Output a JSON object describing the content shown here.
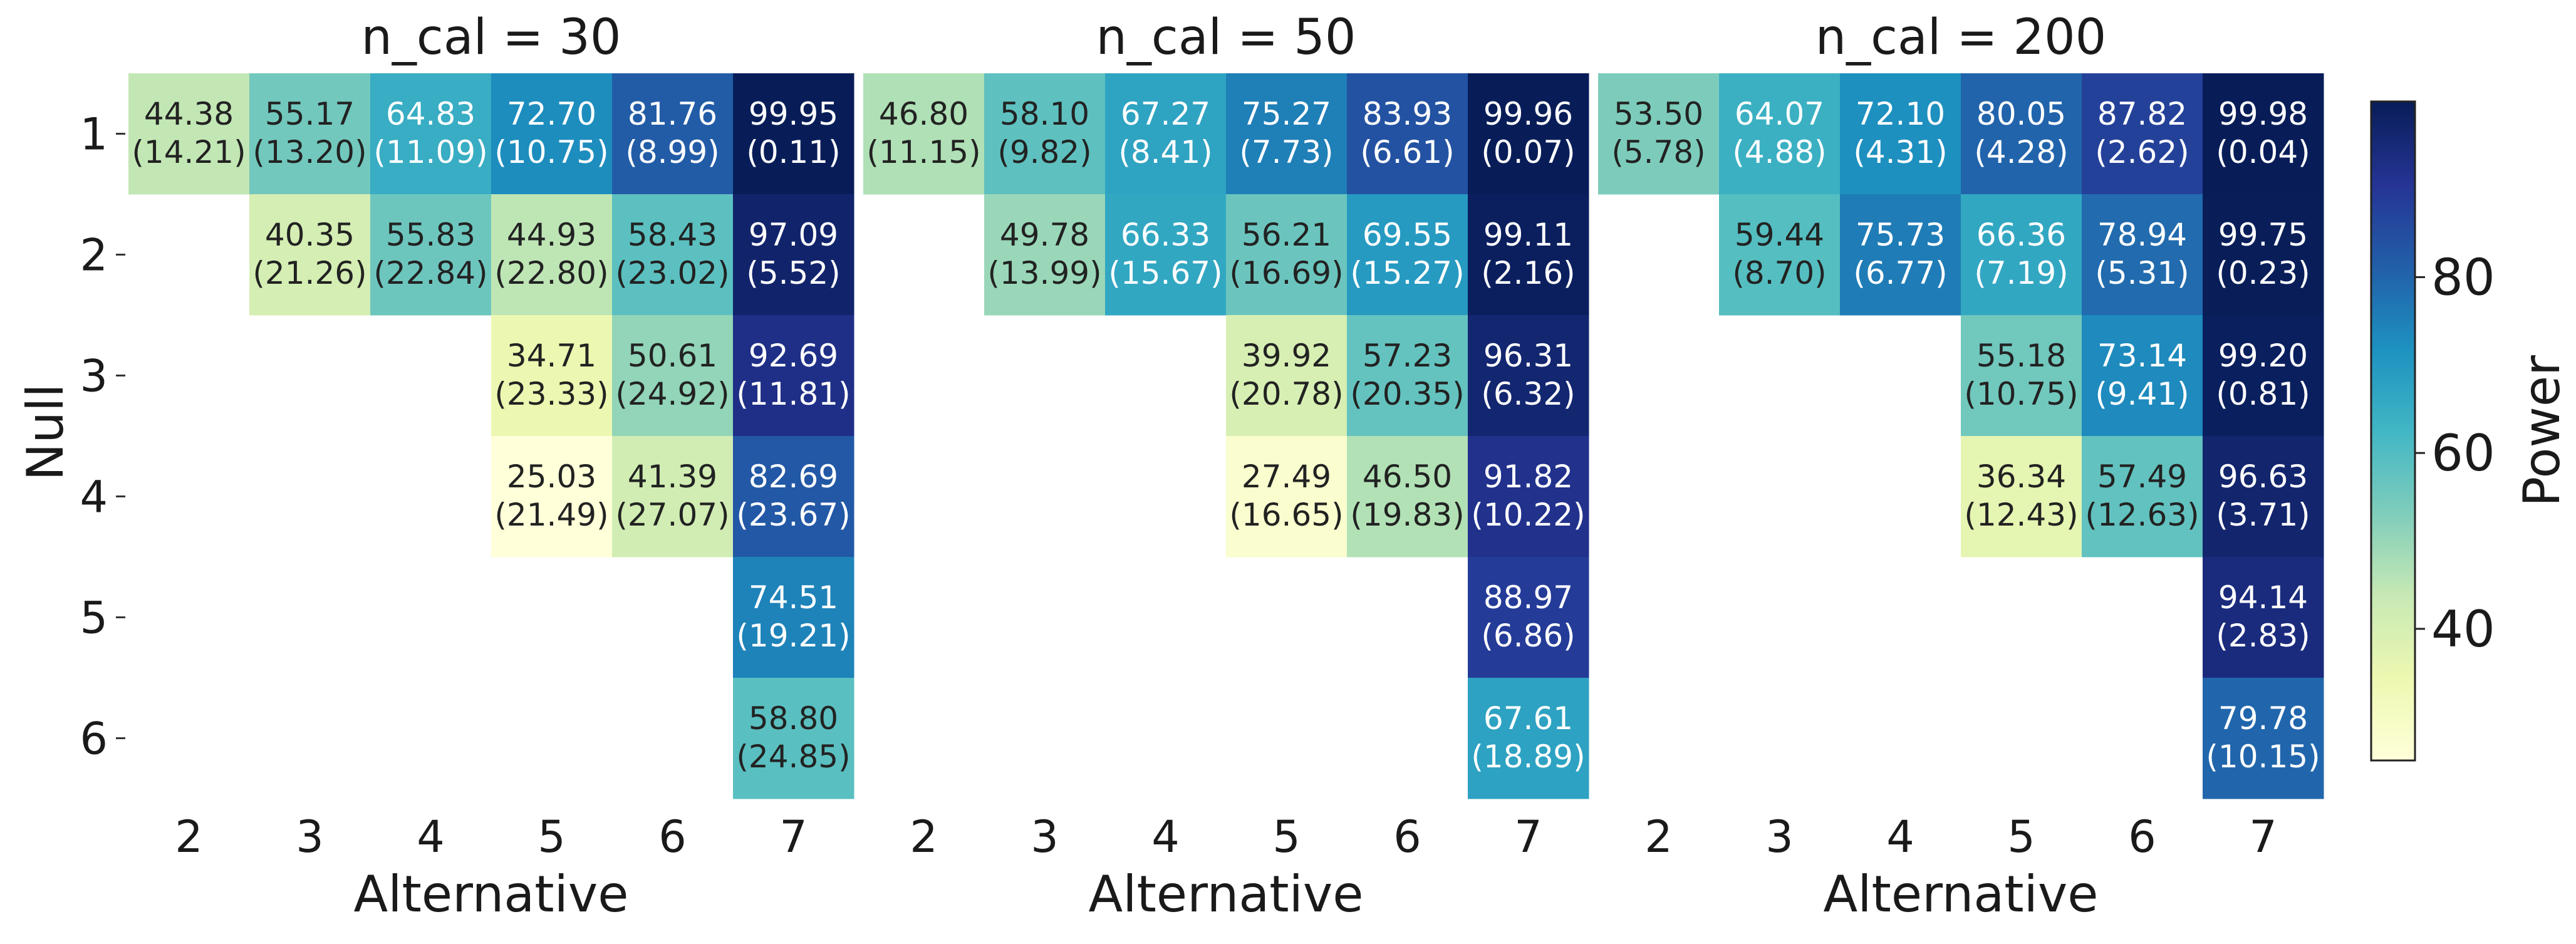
{
  "chart_data": {
    "type": "heatmap",
    "ylabel": "Null",
    "colorbar": {
      "label": "Power",
      "ticks": [
        40,
        60,
        80
      ],
      "range": [
        25.03,
        99.98
      ],
      "colormap": "YlGnBu"
    },
    "panels": [
      {
        "title": "n_cal = 30",
        "xlabel": "Alternative",
        "x_categories": [
          "2",
          "3",
          "4",
          "5",
          "6",
          "7"
        ],
        "y_categories": [
          "1",
          "2",
          "3",
          "4",
          "5",
          "6"
        ],
        "cells": [
          {
            "null": "1",
            "alt": "2",
            "value": 44.38,
            "sd": 14.21
          },
          {
            "null": "1",
            "alt": "3",
            "value": 55.17,
            "sd": 13.2
          },
          {
            "null": "1",
            "alt": "4",
            "value": 64.83,
            "sd": 11.09
          },
          {
            "null": "1",
            "alt": "5",
            "value": 72.7,
            "sd": 10.75
          },
          {
            "null": "1",
            "alt": "6",
            "value": 81.76,
            "sd": 8.99
          },
          {
            "null": "1",
            "alt": "7",
            "value": 99.95,
            "sd": 0.11
          },
          {
            "null": "2",
            "alt": "3",
            "value": 40.35,
            "sd": 21.26
          },
          {
            "null": "2",
            "alt": "4",
            "value": 55.83,
            "sd": 22.84
          },
          {
            "null": "2",
            "alt": "5",
            "value": 44.93,
            "sd": 22.8
          },
          {
            "null": "2",
            "alt": "6",
            "value": 58.43,
            "sd": 23.02
          },
          {
            "null": "2",
            "alt": "7",
            "value": 97.09,
            "sd": 5.52
          },
          {
            "null": "3",
            "alt": "5",
            "value": 34.71,
            "sd": 23.33
          },
          {
            "null": "3",
            "alt": "6",
            "value": 50.61,
            "sd": 24.92
          },
          {
            "null": "3",
            "alt": "7",
            "value": 92.69,
            "sd": 11.81
          },
          {
            "null": "4",
            "alt": "5",
            "value": 25.03,
            "sd": 21.49
          },
          {
            "null": "4",
            "alt": "6",
            "value": 41.39,
            "sd": 27.07
          },
          {
            "null": "4",
            "alt": "7",
            "value": 82.69,
            "sd": 23.67
          },
          {
            "null": "5",
            "alt": "7",
            "value": 74.51,
            "sd": 19.21
          },
          {
            "null": "6",
            "alt": "7",
            "value": 58.8,
            "sd": 24.85
          }
        ]
      },
      {
        "title": "n_cal = 50",
        "xlabel": "Alternative",
        "x_categories": [
          "2",
          "3",
          "4",
          "5",
          "6",
          "7"
        ],
        "y_categories": [
          "1",
          "2",
          "3",
          "4",
          "5",
          "6"
        ],
        "cells": [
          {
            "null": "1",
            "alt": "2",
            "value": 46.8,
            "sd": 11.15
          },
          {
            "null": "1",
            "alt": "3",
            "value": 58.1,
            "sd": 9.82
          },
          {
            "null": "1",
            "alt": "4",
            "value": 67.27,
            "sd": 8.41
          },
          {
            "null": "1",
            "alt": "5",
            "value": 75.27,
            "sd": 7.73
          },
          {
            "null": "1",
            "alt": "6",
            "value": 83.93,
            "sd": 6.61
          },
          {
            "null": "1",
            "alt": "7",
            "value": 99.96,
            "sd": 0.07
          },
          {
            "null": "2",
            "alt": "3",
            "value": 49.78,
            "sd": 13.99
          },
          {
            "null": "2",
            "alt": "4",
            "value": 66.33,
            "sd": 15.67
          },
          {
            "null": "2",
            "alt": "5",
            "value": 56.21,
            "sd": 16.69
          },
          {
            "null": "2",
            "alt": "6",
            "value": 69.55,
            "sd": 15.27
          },
          {
            "null": "2",
            "alt": "7",
            "value": 99.11,
            "sd": 2.16
          },
          {
            "null": "3",
            "alt": "5",
            "value": 39.92,
            "sd": 20.78
          },
          {
            "null": "3",
            "alt": "6",
            "value": 57.23,
            "sd": 20.35
          },
          {
            "null": "3",
            "alt": "7",
            "value": 96.31,
            "sd": 6.32
          },
          {
            "null": "4",
            "alt": "5",
            "value": 27.49,
            "sd": 16.65
          },
          {
            "null": "4",
            "alt": "6",
            "value": 46.5,
            "sd": 19.83
          },
          {
            "null": "4",
            "alt": "7",
            "value": 91.82,
            "sd": 10.22
          },
          {
            "null": "5",
            "alt": "7",
            "value": 88.97,
            "sd": 6.86
          },
          {
            "null": "6",
            "alt": "7",
            "value": 67.61,
            "sd": 18.89
          }
        ]
      },
      {
        "title": "n_cal = 200",
        "xlabel": "Alternative",
        "x_categories": [
          "2",
          "3",
          "4",
          "5",
          "6",
          "7"
        ],
        "y_categories": [
          "1",
          "2",
          "3",
          "4",
          "5",
          "6"
        ],
        "cells": [
          {
            "null": "1",
            "alt": "2",
            "value": 53.5,
            "sd": 5.78
          },
          {
            "null": "1",
            "alt": "3",
            "value": 64.07,
            "sd": 4.88
          },
          {
            "null": "1",
            "alt": "4",
            "value": 72.1,
            "sd": 4.31
          },
          {
            "null": "1",
            "alt": "5",
            "value": 80.05,
            "sd": 4.28
          },
          {
            "null": "1",
            "alt": "6",
            "value": 87.82,
            "sd": 2.62
          },
          {
            "null": "1",
            "alt": "7",
            "value": 99.98,
            "sd": 0.04
          },
          {
            "null": "2",
            "alt": "3",
            "value": 59.44,
            "sd": 8.7
          },
          {
            "null": "2",
            "alt": "4",
            "value": 75.73,
            "sd": 6.77
          },
          {
            "null": "2",
            "alt": "5",
            "value": 66.36,
            "sd": 7.19
          },
          {
            "null": "2",
            "alt": "6",
            "value": 78.94,
            "sd": 5.31
          },
          {
            "null": "2",
            "alt": "7",
            "value": 99.75,
            "sd": 0.23
          },
          {
            "null": "3",
            "alt": "5",
            "value": 55.18,
            "sd": 10.75
          },
          {
            "null": "3",
            "alt": "6",
            "value": 73.14,
            "sd": 9.41
          },
          {
            "null": "3",
            "alt": "7",
            "value": 99.2,
            "sd": 0.81
          },
          {
            "null": "4",
            "alt": "5",
            "value": 36.34,
            "sd": 12.43
          },
          {
            "null": "4",
            "alt": "6",
            "value": 57.49,
            "sd": 12.63
          },
          {
            "null": "4",
            "alt": "7",
            "value": 96.63,
            "sd": 3.71
          },
          {
            "null": "5",
            "alt": "7",
            "value": 94.14,
            "sd": 2.83
          },
          {
            "null": "6",
            "alt": "7",
            "value": 79.78,
            "sd": 10.15
          }
        ]
      }
    ]
  }
}
